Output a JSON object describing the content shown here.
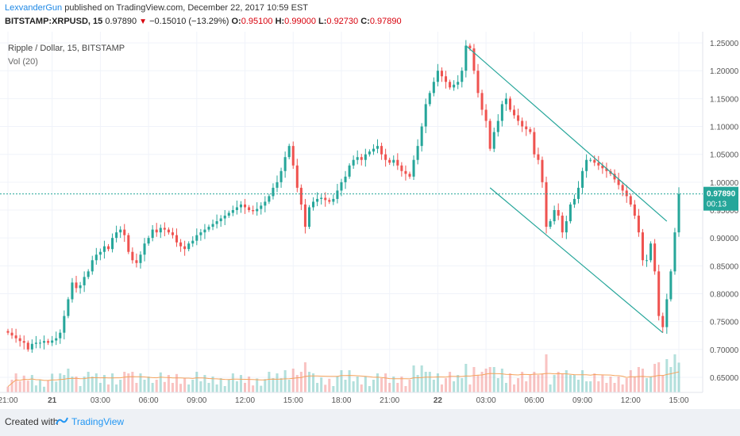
{
  "header": {
    "author": "LexvanderGun",
    "published_text": "published on TradingView.com, December 22, 2017 10:59 EST",
    "symbol": "BITSTAMP:XRPUSD, 15",
    "last": "0.97890",
    "change": "−0.15010 (−13.29%)",
    "o_label": "O:",
    "o_value": "0.95100",
    "h_label": "H:",
    "h_value": "0.99000",
    "l_label": "L:",
    "l_value": "0.92730",
    "c_label": "C:",
    "c_value": "0.97890"
  },
  "footer": {
    "created_with": "Created with",
    "brand": "TradingView"
  },
  "chart_data": {
    "type": "candlestick",
    "title": "Ripple / Dollar, 15, BITSTAMP",
    "indicator": "Vol (20)",
    "ylim": [
      0.63,
      1.27
    ],
    "yticks": [
      "1.25000",
      "1.20000",
      "1.15000",
      "1.10000",
      "1.05000",
      "1.00000",
      "0.95000",
      "0.90000",
      "0.85000",
      "0.80000",
      "0.75000",
      "0.70000",
      "0.65000"
    ],
    "xticks": [
      "21:00",
      "21",
      "03:00",
      "06:00",
      "09:00",
      "12:00",
      "15:00",
      "18:00",
      "21:00",
      "22",
      "03:00",
      "06:00",
      "09:00",
      "12:00",
      "15:00"
    ],
    "last_price_label": "0.97890",
    "countdown_label": "00:13",
    "last_price": 0.9789,
    "bull_color": "#26a69a",
    "bear_color": "#ef5350",
    "channel_color": "#26a69a",
    "closes": [
      0.73,
      0.725,
      0.72,
      0.715,
      0.712,
      0.7,
      0.71,
      0.712,
      0.712,
      0.715,
      0.712,
      0.716,
      0.72,
      0.73,
      0.76,
      0.79,
      0.82,
      0.81,
      0.815,
      0.83,
      0.84,
      0.86,
      0.87,
      0.875,
      0.885,
      0.88,
      0.9,
      0.91,
      0.915,
      0.905,
      0.875,
      0.86,
      0.855,
      0.87,
      0.89,
      0.9,
      0.915,
      0.91,
      0.918,
      0.915,
      0.91,
      0.905,
      0.892,
      0.885,
      0.88,
      0.89,
      0.895,
      0.905,
      0.91,
      0.915,
      0.92,
      0.925,
      0.93,
      0.935,
      0.94,
      0.945,
      0.95,
      0.955,
      0.96,
      0.955,
      0.95,
      0.948,
      0.952,
      0.958,
      0.965,
      0.975,
      0.99,
      1.0,
      1.02,
      1.045,
      1.065,
      1.03,
      0.99,
      0.96,
      0.92,
      0.955,
      0.965,
      0.97,
      0.972,
      0.968,
      0.965,
      0.97,
      0.985,
      1.0,
      1.01,
      1.03,
      1.04,
      1.045,
      1.04,
      1.05,
      1.055,
      1.06,
      1.065,
      1.05,
      1.04,
      1.035,
      1.04,
      1.03,
      1.02,
      1.015,
      1.01,
      1.04,
      1.065,
      1.1,
      1.14,
      1.16,
      1.18,
      1.2,
      1.19,
      1.18,
      1.17,
      1.175,
      1.18,
      1.2,
      1.245,
      1.24,
      1.2,
      1.16,
      1.13,
      1.11,
      1.06,
      1.09,
      1.11,
      1.14,
      1.15,
      1.13,
      1.12,
      1.11,
      1.1,
      1.095,
      1.09,
      1.05,
      1.04,
      1.0,
      0.92,
      0.93,
      0.95,
      0.94,
      0.91,
      0.93,
      0.96,
      0.97,
      0.99,
      1.02,
      1.04,
      1.04,
      1.035,
      1.03,
      1.025,
      1.02,
      1.015,
      1.005,
      0.995,
      0.985,
      0.975,
      0.96,
      0.94,
      0.91,
      0.86,
      0.86,
      0.89,
      0.84,
      0.76,
      0.74,
      0.79,
      0.84,
      0.91,
      0.9789
    ]
  }
}
